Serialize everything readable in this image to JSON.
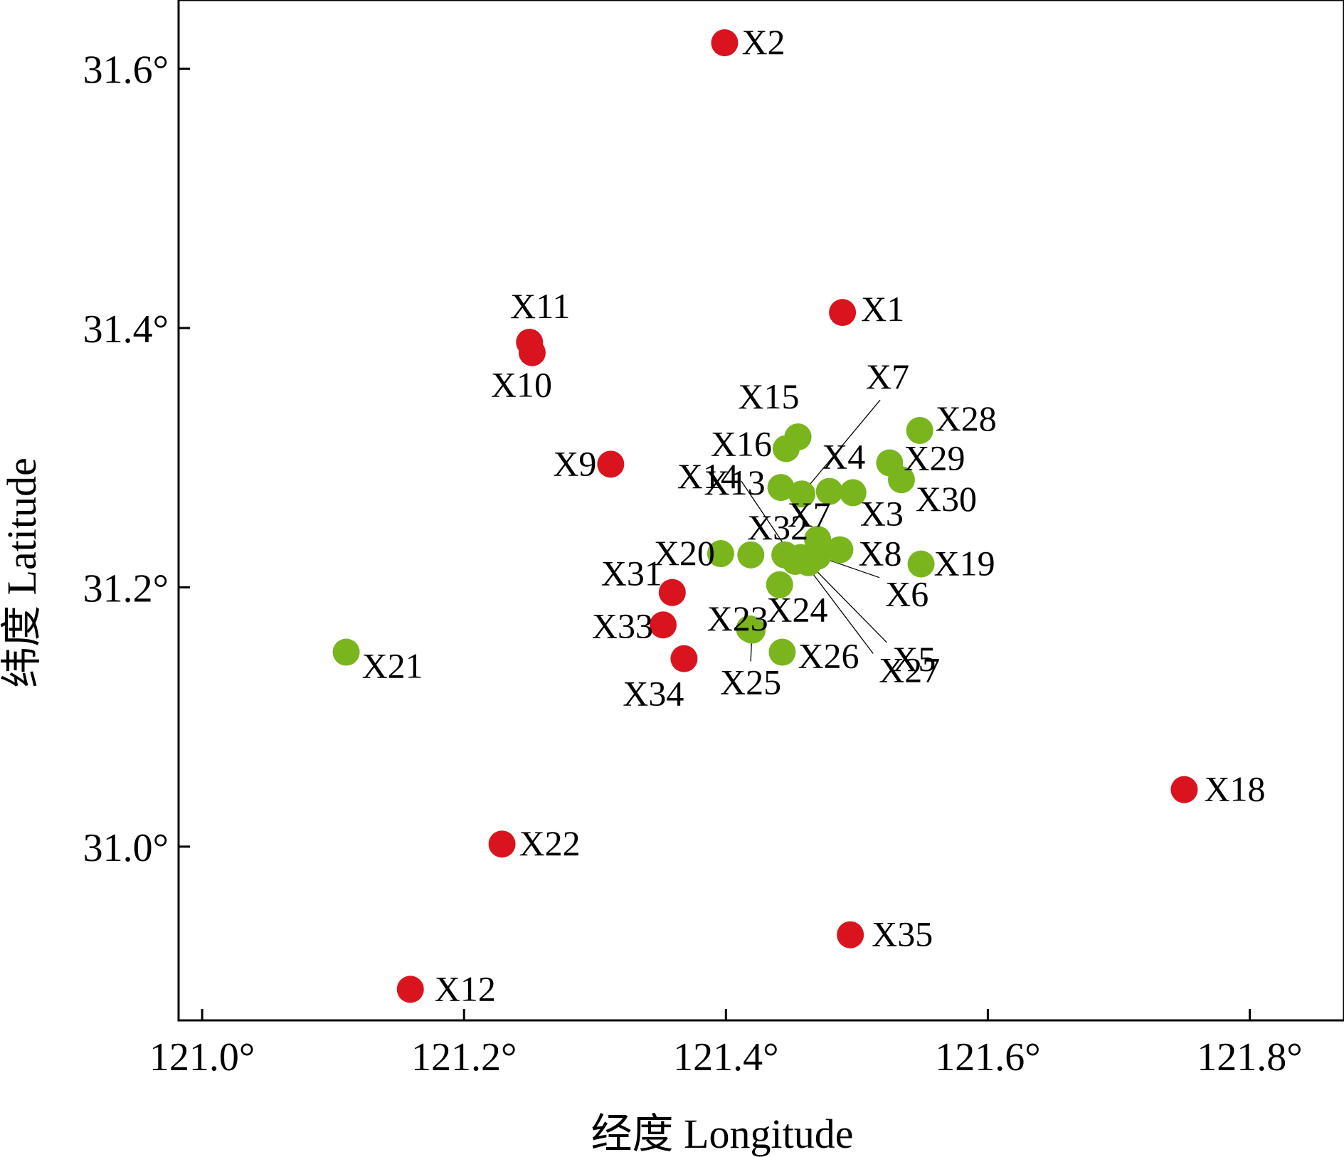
{
  "chart_data": {
    "type": "scatter",
    "xlabel": "经度 Longitude",
    "ylabel": "纬度 Latitude",
    "xlim": [
      120.982,
      121.872
    ],
    "ylim": [
      30.866,
      31.653
    ],
    "xticks": [
      121.0,
      121.2,
      121.4,
      121.6,
      121.8
    ],
    "xtick_labels": [
      "121.0°",
      "121.2°",
      "121.4°",
      "121.6°",
      "121.8°"
    ],
    "yticks": [
      31.0,
      31.2,
      31.4,
      31.6
    ],
    "ytick_labels": [
      "31.0°",
      "31.2°",
      "31.4°",
      "31.6°"
    ],
    "grid": false,
    "colors": {
      "red": "#d9141e",
      "green": "#7ab51d"
    },
    "points": [
      {
        "label": "X1",
        "x": 121.489,
        "y": 31.412,
        "color": "red"
      },
      {
        "label": "X2",
        "x": 121.399,
        "y": 31.62,
        "color": "red"
      },
      {
        "label": "X9",
        "x": 121.312,
        "y": 31.295,
        "color": "red"
      },
      {
        "label": "X10",
        "x": 121.252,
        "y": 31.381,
        "color": "red"
      },
      {
        "label": "X11",
        "x": 121.25,
        "y": 31.389,
        "color": "red"
      },
      {
        "label": "X12",
        "x": 121.159,
        "y": 30.89,
        "color": "red"
      },
      {
        "label": "X18",
        "x": 121.75,
        "y": 31.044,
        "color": "red"
      },
      {
        "label": "X22",
        "x": 121.229,
        "y": 31.002,
        "color": "red"
      },
      {
        "label": "X31",
        "x": 121.359,
        "y": 31.196,
        "color": "red"
      },
      {
        "label": "X33",
        "x": 121.352,
        "y": 31.171,
        "color": "red"
      },
      {
        "label": "X34",
        "x": 121.368,
        "y": 31.145,
        "color": "red"
      },
      {
        "label": "X35",
        "x": 121.495,
        "y": 30.932,
        "color": "red"
      },
      {
        "label": "X3",
        "x": 121.497,
        "y": 31.273,
        "color": "green"
      },
      {
        "label": "X4",
        "x": 121.479,
        "y": 31.274,
        "color": "green"
      },
      {
        "label": "X5",
        "x": 121.463,
        "y": 31.219,
        "color": "green"
      },
      {
        "label": "X6",
        "x": 121.47,
        "y": 31.224,
        "color": "green"
      },
      {
        "label": "X7",
        "x": 121.458,
        "y": 31.272,
        "color": "green"
      },
      {
        "label": "X7",
        "x": 121.47,
        "y": 31.237,
        "color": "green"
      },
      {
        "label": "X8",
        "x": 121.487,
        "y": 31.229,
        "color": "green"
      },
      {
        "label": "X13",
        "x": 121.442,
        "y": 31.277,
        "color": "green"
      },
      {
        "label": "X14",
        "x": 121.453,
        "y": 31.22,
        "color": "green"
      },
      {
        "label": "X15",
        "x": 121.455,
        "y": 31.316,
        "color": "green"
      },
      {
        "label": "X16",
        "x": 121.446,
        "y": 31.307,
        "color": "green"
      },
      {
        "label": "X19",
        "x": 121.549,
        "y": 31.218,
        "color": "green"
      },
      {
        "label": "X20",
        "x": 121.396,
        "y": 31.226,
        "color": "green"
      },
      {
        "label": "X21",
        "x": 121.11,
        "y": 31.15,
        "color": "green"
      },
      {
        "label": "X23",
        "x": 121.441,
        "y": 31.202,
        "color": "green"
      },
      {
        "label": "X24",
        "x": 121.418,
        "y": 31.168,
        "color": "green"
      },
      {
        "label": "X25",
        "x": 121.42,
        "y": 31.167,
        "color": "green"
      },
      {
        "label": "X26",
        "x": 121.443,
        "y": 31.15,
        "color": "green"
      },
      {
        "label": "X27",
        "x": 121.457,
        "y": 31.223,
        "color": "green"
      },
      {
        "label": "X28",
        "x": 121.548,
        "y": 31.321,
        "color": "green"
      },
      {
        "label": "X29",
        "x": 121.525,
        "y": 31.296,
        "color": "green"
      },
      {
        "label": "X30",
        "x": 121.534,
        "y": 31.283,
        "color": "green"
      },
      {
        "label": "X32",
        "x": 121.445,
        "y": 31.225,
        "color": "green"
      },
      {
        "label": "X20",
        "x": 121.419,
        "y": 31.225,
        "color": "green"
      }
    ]
  }
}
